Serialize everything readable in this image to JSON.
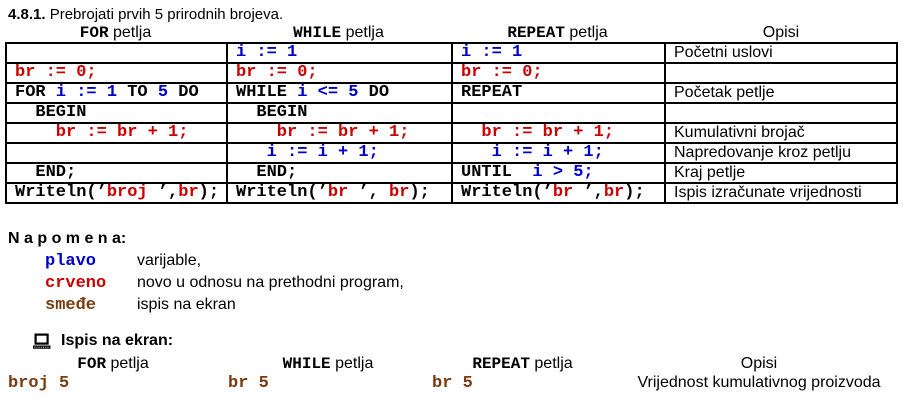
{
  "colors": {
    "blue": "#0000cc",
    "red": "#cc0000",
    "brown": "#7a3b10",
    "code_black": "#000000"
  },
  "title": {
    "number": "4.8.1.",
    "text": " Prebrojati prvih 5 prirodnih brojeva."
  },
  "loop_table": {
    "column_headers": [
      {
        "keyword": "FOR",
        "label": " petlja"
      },
      {
        "keyword": "WHILE",
        "label": " petlja"
      },
      {
        "keyword": "REPEAT",
        "label": " petlja"
      },
      {
        "keyword": "",
        "label": "Opisi"
      }
    ],
    "rows": [
      {
        "cells": [
          [],
          [
            {
              "t": "i := 1",
              "c": "blue"
            }
          ],
          [
            {
              "t": "i := 1",
              "c": "blue"
            }
          ]
        ],
        "opis": "Početni uslovi"
      },
      {
        "cells": [
          [
            {
              "t": "br := 0;",
              "c": "red"
            }
          ],
          [
            {
              "t": "br := 0;",
              "c": "red"
            }
          ],
          [
            {
              "t": "br := 0;",
              "c": "red"
            }
          ]
        ],
        "opis": ""
      },
      {
        "cells": [
          [
            {
              "t": "FOR ",
              "c": "black"
            },
            {
              "t": "i := 1",
              "c": "blue"
            },
            {
              "t": " TO ",
              "c": "black"
            },
            {
              "t": "5",
              "c": "blue"
            },
            {
              "t": " DO",
              "c": "black"
            }
          ],
          [
            {
              "t": "WHILE ",
              "c": "black"
            },
            {
              "t": "i <= 5",
              "c": "blue"
            },
            {
              "t": " DO",
              "c": "black"
            }
          ],
          [
            {
              "t": "REPEAT",
              "c": "black"
            }
          ]
        ],
        "opis": "Početak petlje"
      },
      {
        "cells": [
          [
            {
              "t": "  BEGIN",
              "c": "black"
            }
          ],
          [
            {
              "t": "  BEGIN",
              "c": "black"
            }
          ],
          []
        ],
        "opis": ""
      },
      {
        "cells": [
          [
            {
              "t": "    br := br + 1;",
              "c": "red"
            }
          ],
          [
            {
              "t": "    br := br + 1;",
              "c": "red"
            }
          ],
          [
            {
              "t": "  br := br + 1;",
              "c": "red"
            }
          ]
        ],
        "opis": "Kumulativni brojač"
      },
      {
        "cells": [
          [],
          [
            {
              "t": "   i := i + 1;",
              "c": "blue"
            }
          ],
          [
            {
              "t": "   i := i + 1;",
              "c": "blue"
            }
          ]
        ],
        "opis": "Napredovanje kroz petlju"
      },
      {
        "cells": [
          [
            {
              "t": "  END;",
              "c": "black"
            }
          ],
          [
            {
              "t": "  END;",
              "c": "black"
            }
          ],
          [
            {
              "t": "UNTIL  ",
              "c": "black"
            },
            {
              "t": "i > 5;",
              "c": "blue"
            }
          ]
        ],
        "opis": "Kraj petlje"
      },
      {
        "cells": [
          [
            {
              "t": "Writeln(’",
              "c": "black"
            },
            {
              "t": "broj ",
              "c": "red"
            },
            {
              "t": "’,",
              "c": "black"
            },
            {
              "t": "br",
              "c": "red"
            },
            {
              "t": ");",
              "c": "black"
            }
          ],
          [
            {
              "t": "Writeln(’",
              "c": "black"
            },
            {
              "t": "br ",
              "c": "red"
            },
            {
              "t": "’, ",
              "c": "black"
            },
            {
              "t": "br",
              "c": "red"
            },
            {
              "t": ");",
              "c": "black"
            }
          ],
          [
            {
              "t": "Writeln(’",
              "c": "black"
            },
            {
              "t": "br ",
              "c": "red"
            },
            {
              "t": "’,",
              "c": "black"
            },
            {
              "t": "br",
              "c": "red"
            },
            {
              "t": ");",
              "c": "black"
            }
          ]
        ],
        "opis": "Ispis izračunate vrijednosti"
      }
    ]
  },
  "napomena": {
    "heading": "N a p o m e n a:",
    "items": [
      {
        "term": "plavo",
        "color": "blue",
        "desc": "varijable,"
      },
      {
        "term": "crveno",
        "color": "red",
        "desc": "novo u odnosu na prethodni program,"
      },
      {
        "term": "smeđe",
        "color": "brown",
        "desc": "ispis na ekran"
      }
    ]
  },
  "output_section": {
    "icon": "computer-icon",
    "heading": "Ispis na ekran:",
    "column_headers": [
      {
        "keyword": "FOR",
        "label": " petlja"
      },
      {
        "keyword": "WHILE",
        "label": " petlja"
      },
      {
        "keyword": "REPEAT",
        "label": " petlja"
      },
      {
        "keyword": "",
        "label": "Opisi"
      }
    ],
    "outputs": [
      "broj 5",
      "br 5",
      "br 5"
    ],
    "description": "Vrijednost kumulativnog proizvoda"
  }
}
